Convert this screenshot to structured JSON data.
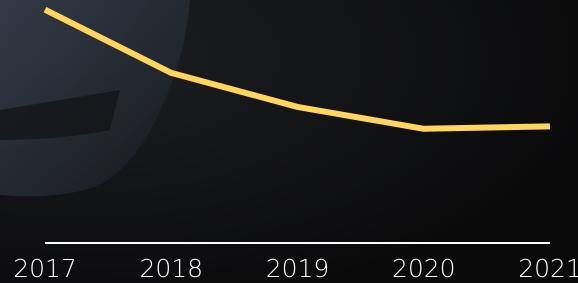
{
  "chart_data": {
    "type": "line",
    "categories": [
      "2017",
      "2018",
      "2019",
      "2020",
      "2021"
    ],
    "values": [
      96,
      70,
      56,
      47,
      48
    ],
    "color": "#ffd55e",
    "ylim": [
      0,
      100
    ]
  }
}
